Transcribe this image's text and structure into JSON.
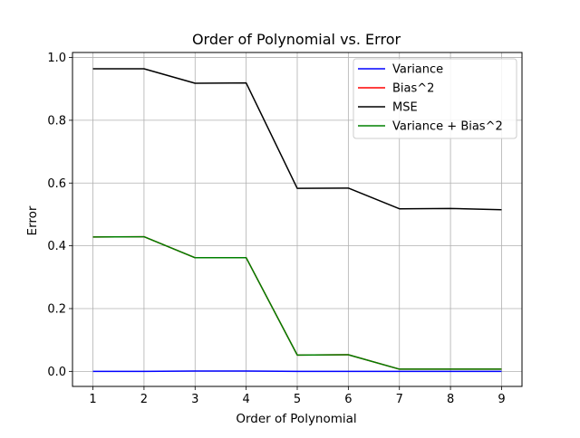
{
  "chart_data": {
    "type": "line",
    "title": "Order of Polynomial vs. Error",
    "xlabel": "Order of Polynomial",
    "ylabel": "Error",
    "x": [
      1,
      2,
      3,
      4,
      5,
      6,
      7,
      8,
      9
    ],
    "xlim": [
      0.6,
      9.4
    ],
    "ylim": [
      -0.048,
      1.016
    ],
    "xticks": [
      1,
      2,
      3,
      4,
      5,
      6,
      7,
      8,
      9
    ],
    "yticks": [
      0.0,
      0.2,
      0.4,
      0.6,
      0.8,
      1.0
    ],
    "ytick_labels": [
      "0.0",
      "0.2",
      "0.4",
      "0.6",
      "0.8",
      "1.0"
    ],
    "grid": true,
    "legend_position": "top-right",
    "series": [
      {
        "name": "Variance",
        "color": "#0000ff",
        "values": [
          0.0,
          0.0,
          0.001,
          0.001,
          0.0,
          0.0,
          0.0,
          0.0,
          0.0
        ]
      },
      {
        "name": "Bias^2",
        "color": "#ff0000",
        "values": [
          0.428,
          0.429,
          0.362,
          0.362,
          0.052,
          0.053,
          0.007,
          0.007,
          0.007
        ]
      },
      {
        "name": "MSE",
        "color": "#000000",
        "values": [
          0.964,
          0.964,
          0.918,
          0.919,
          0.583,
          0.584,
          0.518,
          0.519,
          0.515
        ]
      },
      {
        "name": "Variance + Bias^2",
        "color": "#008000",
        "values": [
          0.428,
          0.429,
          0.362,
          0.362,
          0.052,
          0.053,
          0.007,
          0.007,
          0.007
        ]
      }
    ]
  }
}
